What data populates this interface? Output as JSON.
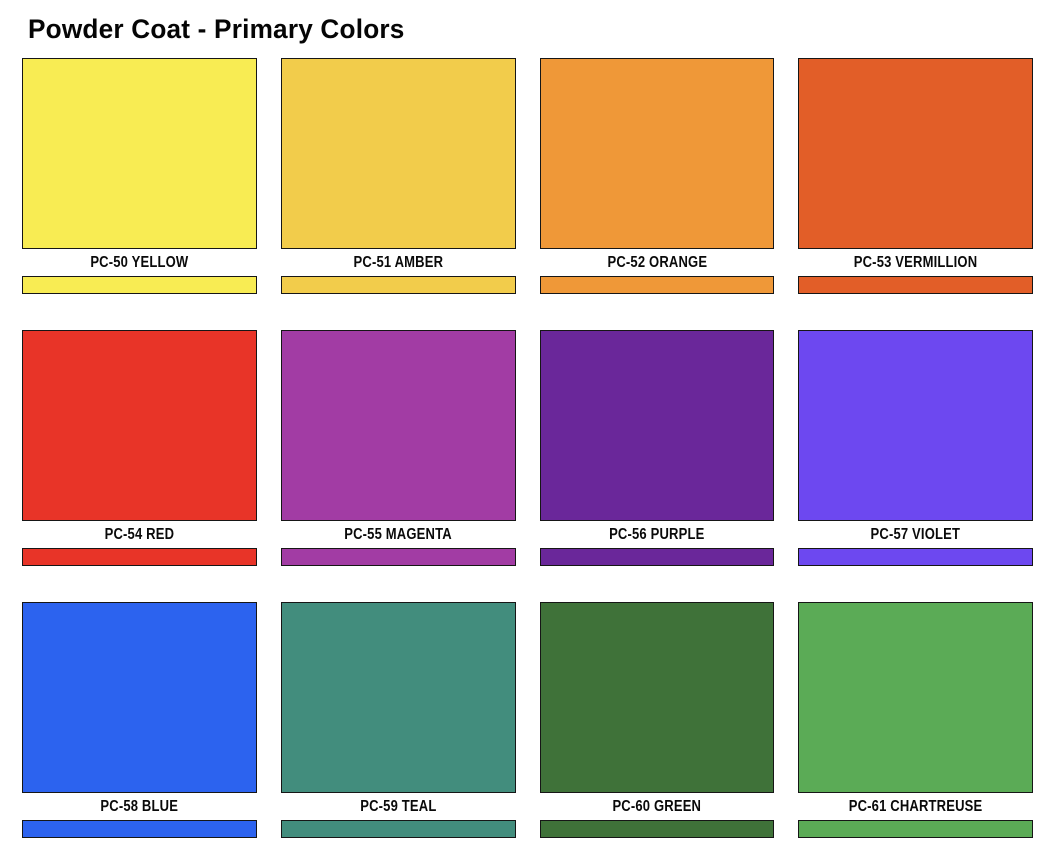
{
  "page": {
    "title": "Powder Coat - Primary Colors"
  },
  "colors": {
    "background": "#FFFFFF",
    "swatch_border": "#161616",
    "text": "#0A0A0A"
  },
  "swatches": [
    {
      "code": "PC-50",
      "color_name": "YELLOW",
      "label": "PC-50 YELLOW",
      "color": "#F8EC53"
    },
    {
      "code": "PC-51",
      "color_name": "AMBER",
      "label": "PC-51 AMBER",
      "color": "#F2CC4B"
    },
    {
      "code": "PC-52",
      "color_name": "ORANGE",
      "label": "PC-52 ORANGE",
      "color": "#EF9838"
    },
    {
      "code": "PC-53",
      "color_name": "VERMILLION",
      "label": "PC-53 VERMILLION",
      "color": "#E25E28"
    },
    {
      "code": "PC-54",
      "color_name": "RED",
      "label": "PC-54 RED",
      "color": "#E83428"
    },
    {
      "code": "PC-55",
      "color_name": "MAGENTA",
      "label": "PC-55 MAGENTA",
      "color": "#A23CA4"
    },
    {
      "code": "PC-56",
      "color_name": "PURPLE",
      "label": "PC-56 PURPLE",
      "color": "#6A279A"
    },
    {
      "code": "PC-57",
      "color_name": "VIOLET",
      "label": "PC-57 VIOLET",
      "color": "#6D48F0"
    },
    {
      "code": "PC-58",
      "color_name": "BLUE",
      "label": "PC-58 BLUE",
      "color": "#2C63EF"
    },
    {
      "code": "PC-59",
      "color_name": "TEAL",
      "label": "PC-59 TEAL",
      "color": "#428D7D"
    },
    {
      "code": "PC-60",
      "color_name": "GREEN",
      "label": "PC-60 GREEN",
      "color": "#3F7239"
    },
    {
      "code": "PC-61",
      "color_name": "CHARTREUSE",
      "label": "PC-61 CHARTREUSE",
      "color": "#5BAB56"
    }
  ]
}
